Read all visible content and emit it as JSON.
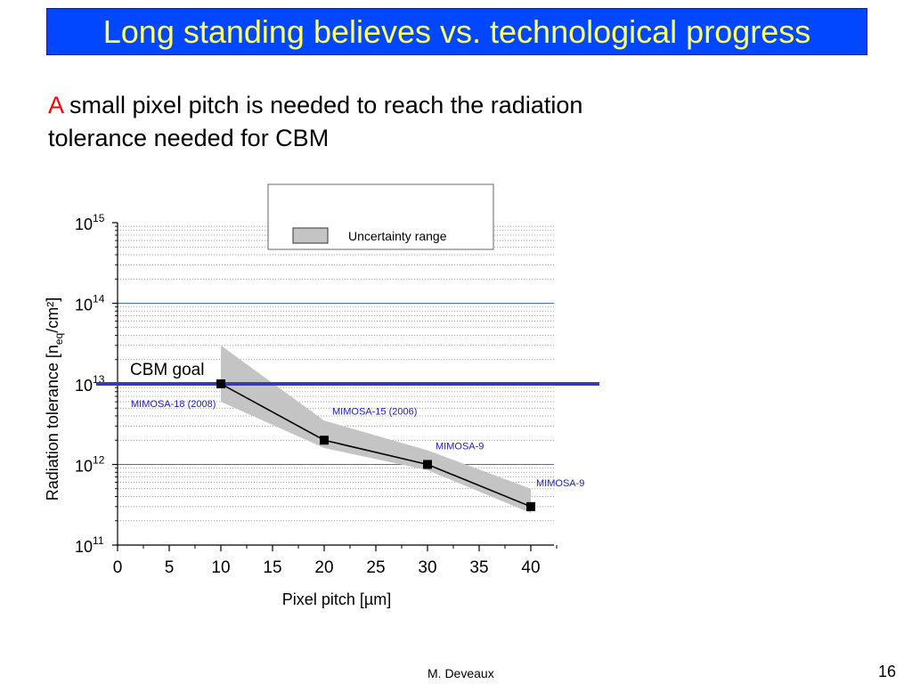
{
  "slide": {
    "title": "Long standing believes vs. technological progress",
    "subtitle_highlight": "A",
    "subtitle_rest": " small pixel pitch is needed to reach the radiation tolerance needed for CBM",
    "author": "M. Deveaux",
    "page_number": "16"
  },
  "colors": {
    "title_background": "#0047ff",
    "title_text": "#ffff66",
    "highlight": "#ff0000",
    "goal_line": "#3b3bb0",
    "point_labels": "#1c1cb8",
    "band": "#c4c4c4"
  },
  "chart_data": {
    "type": "scatter",
    "title": "",
    "xlabel": "Pixel pitch [µm]",
    "ylabel_parts": {
      "main": "Radiation tolerance [n",
      "sub": "eq",
      "tail": "/cm²]"
    },
    "xlim": [
      0,
      42
    ],
    "x_ticks": [
      "0",
      "5",
      "10",
      "15",
      "20",
      "25",
      "30",
      "35",
      "40"
    ],
    "y_scale": "log",
    "ylim": [
      100000000000.0,
      1000000000000000.0
    ],
    "y_ticks": [
      {
        "base": "10",
        "exp": "11"
      },
      {
        "base": "10",
        "exp": "12"
      },
      {
        "base": "10",
        "exp": "13"
      },
      {
        "base": "10",
        "exp": "14"
      },
      {
        "base": "10",
        "exp": "15"
      }
    ],
    "grid": "dotted minor gridlines, solid lines at 1e12 and 1e14",
    "legend": {
      "position": "top",
      "entries": [
        "Uncertainty range"
      ]
    },
    "series": [
      {
        "points": [
          {
            "x": 10,
            "y": 10000000000000.0,
            "label": "MIMOSA-18 (2008)"
          },
          {
            "x": 20,
            "y": 2000000000000.0,
            "label": "MIMOSA-15 (2006)"
          },
          {
            "x": 30,
            "y": 1000000000000.0,
            "label": "MIMOSA-9"
          },
          {
            "x": 40,
            "y": 300000000000.0,
            "label": "MIMOSA-9"
          }
        ]
      }
    ],
    "uncertainty_band": [
      {
        "x": 10,
        "low": 6000000000000.0,
        "high": 30000000000000.0
      },
      {
        "x": 20,
        "low": 1600000000000.0,
        "high": 3500000000000.0
      },
      {
        "x": 30,
        "low": 850000000000.0,
        "high": 1500000000000.0
      },
      {
        "x": 40,
        "low": 250000000000.0,
        "high": 500000000000.0
      }
    ],
    "goal": {
      "label": "CBM goal",
      "y": 10000000000000.0
    }
  }
}
